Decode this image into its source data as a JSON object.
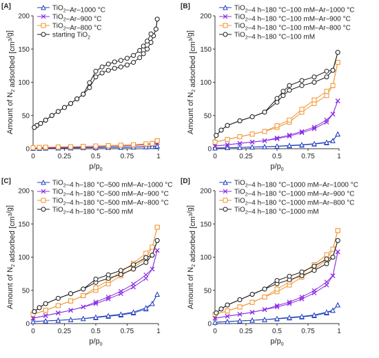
{
  "chart_data": [
    {
      "type": "line",
      "panel_label": "[A]",
      "xlabel": "p/p0",
      "ylabel": "Amount of N2 adsorbed [cm3/g]",
      "xlim": [
        0,
        1
      ],
      "ylim": [
        0,
        200
      ],
      "xticks": [
        "0",
        "0.25",
        "0.5",
        "0.75",
        "1"
      ],
      "yticks": [
        "0",
        "50",
        "100",
        "150",
        "200"
      ],
      "legend_position": "top-left",
      "series": [
        {
          "name": "TiO2–Ar–1000 °C",
          "marker": "triangle",
          "color": "#1f3fbf",
          "x": [
            0,
            0.05,
            0.1,
            0.2,
            0.3,
            0.4,
            0.5,
            0.6,
            0.7,
            0.8,
            0.9,
            0.95,
            0.99
          ],
          "y": [
            0.5,
            0.7,
            0.9,
            1.1,
            1.3,
            1.5,
            1.7,
            1.9,
            2.1,
            2.4,
            2.8,
            3.2,
            4
          ]
        },
        {
          "name": "TiO2–Ar–900 °C",
          "marker": "x",
          "color": "#8a2be2",
          "x": [
            0,
            0.05,
            0.1,
            0.2,
            0.3,
            0.4,
            0.5,
            0.6,
            0.7,
            0.8,
            0.9,
            0.95,
            0.99
          ],
          "y": [
            1,
            1.3,
            1.6,
            2,
            2.4,
            2.8,
            3.2,
            3.7,
            4.2,
            5,
            6,
            7,
            9
          ]
        },
        {
          "name": "TiO2–Ar–800 °C",
          "marker": "square",
          "color": "#f0922a",
          "x": [
            0,
            0.05,
            0.1,
            0.2,
            0.3,
            0.4,
            0.5,
            0.6,
            0.7,
            0.8,
            0.9,
            0.95,
            0.99
          ],
          "y": [
            1.5,
            1.9,
            2.2,
            2.6,
            3,
            3.4,
            3.8,
            4.3,
            4.9,
            5.6,
            6.8,
            8,
            12
          ]
        },
        {
          "name": "starting TiO2",
          "marker": "circle",
          "color": "#1a1a1a",
          "x": [
            0.01,
            0.03,
            0.06,
            0.1,
            0.15,
            0.2,
            0.25,
            0.3,
            0.35,
            0.4,
            0.45,
            0.5,
            0.55,
            0.6,
            0.65,
            0.7,
            0.75,
            0.8,
            0.85,
            0.88,
            0.91,
            0.94,
            0.96,
            0.98,
            0.99
          ],
          "y": [
            32,
            35,
            38,
            43,
            50,
            56,
            62,
            68,
            75,
            82,
            92,
            108,
            114,
            118,
            121,
            123,
            126,
            130,
            137,
            143,
            150,
            160,
            170,
            180,
            195
          ]
        }
      ]
    },
    {
      "type": "line",
      "panel_label": "[B]",
      "xlabel": "p/p0",
      "ylabel": "Amount of N2 adsorbed [cm3/g]",
      "xlim": [
        0,
        1
      ],
      "ylim": [
        0,
        200
      ],
      "xticks": [
        "0",
        "0.25",
        "0.5",
        "0.75",
        "1"
      ],
      "yticks": [
        "0",
        "50",
        "100",
        "150",
        "200"
      ],
      "legend_position": "top-left",
      "series": [
        {
          "name": "TiO2–4 h–180 °C–100 mM–Ar–1000 °C",
          "marker": "triangle",
          "color": "#1f3fbf",
          "x": [
            0,
            0.1,
            0.2,
            0.3,
            0.4,
            0.5,
            0.6,
            0.7,
            0.8,
            0.9,
            0.95,
            0.99
          ],
          "y": [
            1,
            1.5,
            2,
            2.5,
            3,
            3.5,
            4.5,
            5.5,
            7,
            9,
            12,
            22
          ]
        },
        {
          "name": "TiO2–4 h–180 °C–100 mM–Ar–900 °C",
          "marker": "x",
          "color": "#8a2be2",
          "x": [
            0,
            0.1,
            0.2,
            0.3,
            0.4,
            0.5,
            0.6,
            0.7,
            0.8,
            0.9,
            0.95,
            0.99
          ],
          "y": [
            4,
            6,
            8,
            10,
            12,
            15,
            19,
            24,
            30,
            40,
            52,
            72
          ]
        },
        {
          "name": "TiO2–4 h–180 °C–100 mM–Ar–800 °C",
          "marker": "square",
          "color": "#f0922a",
          "x": [
            0,
            0.1,
            0.2,
            0.3,
            0.4,
            0.5,
            0.6,
            0.7,
            0.8,
            0.9,
            0.95,
            0.99
          ],
          "y": [
            10,
            14,
            18,
            22,
            26,
            32,
            40,
            55,
            68,
            80,
            95,
            130
          ]
        },
        {
          "name": "TiO2–4 h–180 °C–100 mM",
          "marker": "circle",
          "color": "#1a1a1a",
          "x": [
            0.01,
            0.05,
            0.1,
            0.2,
            0.3,
            0.4,
            0.5,
            0.55,
            0.6,
            0.7,
            0.8,
            0.9,
            0.95,
            0.99
          ],
          "y": [
            20,
            28,
            35,
            42,
            48,
            55,
            70,
            80,
            88,
            95,
            100,
            108,
            118,
            145
          ]
        }
      ]
    },
    {
      "type": "line",
      "panel_label": "[C]",
      "xlabel": "p/p0",
      "ylabel": "Amount of N2 adsorbed [cm3/g]",
      "xlim": [
        0,
        1
      ],
      "ylim": [
        0,
        200
      ],
      "xticks": [
        "0",
        "0.25",
        "0.5",
        "0.75",
        "1"
      ],
      "yticks": [
        "0",
        "50",
        "100",
        "150",
        "200"
      ],
      "legend_position": "top-left",
      "series": [
        {
          "name": "TiO2–4 h–180 °C–500 mM–Ar–1000 °C",
          "marker": "triangle",
          "color": "#1f3fbf",
          "x": [
            0,
            0.1,
            0.2,
            0.3,
            0.4,
            0.5,
            0.6,
            0.7,
            0.8,
            0.9,
            0.95,
            0.99
          ],
          "y": [
            3,
            4,
            5,
            6,
            7.5,
            9,
            11,
            13,
            16,
            22,
            30,
            44
          ]
        },
        {
          "name": "TiO2–4 h–180 °C–500 mM–Ar–900 °C",
          "marker": "x",
          "color": "#8a2be2",
          "x": [
            0,
            0.1,
            0.2,
            0.3,
            0.4,
            0.5,
            0.6,
            0.7,
            0.8,
            0.9,
            0.95,
            0.99
          ],
          "y": [
            8,
            12,
            16,
            20,
            25,
            30,
            37,
            45,
            55,
            68,
            82,
            110
          ]
        },
        {
          "name": "TiO2–4 h–180 °C–500 mM–Ar–800 °C",
          "marker": "square",
          "color": "#f0922a",
          "x": [
            0,
            0.1,
            0.2,
            0.3,
            0.4,
            0.5,
            0.6,
            0.7,
            0.8,
            0.9,
            0.95,
            0.99
          ],
          "y": [
            14,
            20,
            27,
            34,
            42,
            50,
            60,
            72,
            84,
            98,
            115,
            145
          ]
        },
        {
          "name": "TiO2–4 h–180 °C–500 mM",
          "marker": "circle",
          "color": "#1a1a1a",
          "x": [
            0.01,
            0.05,
            0.1,
            0.2,
            0.3,
            0.4,
            0.5,
            0.6,
            0.7,
            0.8,
            0.9,
            0.95,
            0.99
          ],
          "y": [
            18,
            24,
            30,
            38,
            45,
            52,
            62,
            68,
            74,
            82,
            92,
            103,
            125
          ]
        }
      ]
    },
    {
      "type": "line",
      "panel_label": "[D]",
      "xlabel": "p/p0",
      "ylabel": "Amount of N2 adsorbed [cm3/g]",
      "xlim": [
        0,
        1
      ],
      "ylim": [
        0,
        200
      ],
      "xticks": [
        "0",
        "0.25",
        "0.5",
        "0.75",
        "1"
      ],
      "yticks": [
        "0",
        "50",
        "100",
        "150",
        "200"
      ],
      "legend_position": "top-left",
      "series": [
        {
          "name": "TiO2–4 h–180 °C–1000 mM–Ar–1000 °C",
          "marker": "triangle",
          "color": "#1f3fbf",
          "x": [
            0,
            0.1,
            0.2,
            0.3,
            0.4,
            0.5,
            0.6,
            0.7,
            0.8,
            0.9,
            0.95,
            0.99
          ],
          "y": [
            2,
            3,
            4,
            5,
            6,
            7,
            8.5,
            10,
            12,
            16,
            20,
            28
          ]
        },
        {
          "name": "TiO2–4 h–180 °C–1000 mM–Ar–900 °C",
          "marker": "x",
          "color": "#8a2be2",
          "x": [
            0,
            0.1,
            0.2,
            0.3,
            0.4,
            0.5,
            0.6,
            0.7,
            0.8,
            0.9,
            0.95,
            0.99
          ],
          "y": [
            8,
            11,
            14,
            17,
            21,
            25,
            30,
            37,
            46,
            58,
            72,
            108
          ]
        },
        {
          "name": "TiO2–4 h–180 °C–1000 mM–Ar–800 °C",
          "marker": "square",
          "color": "#f0922a",
          "x": [
            0,
            0.1,
            0.2,
            0.3,
            0.4,
            0.5,
            0.6,
            0.7,
            0.8,
            0.9,
            0.95,
            0.99
          ],
          "y": [
            14,
            19,
            25,
            32,
            40,
            48,
            58,
            70,
            82,
            96,
            112,
            140
          ]
        },
        {
          "name": "TiO2–4 h–180 °C–1000 mM",
          "marker": "circle",
          "color": "#1a1a1a",
          "x": [
            0.01,
            0.05,
            0.1,
            0.2,
            0.3,
            0.4,
            0.5,
            0.6,
            0.7,
            0.8,
            0.9,
            0.95,
            0.99
          ],
          "y": [
            16,
            22,
            28,
            36,
            44,
            52,
            60,
            66,
            72,
            80,
            90,
            100,
            125
          ]
        }
      ]
    }
  ]
}
